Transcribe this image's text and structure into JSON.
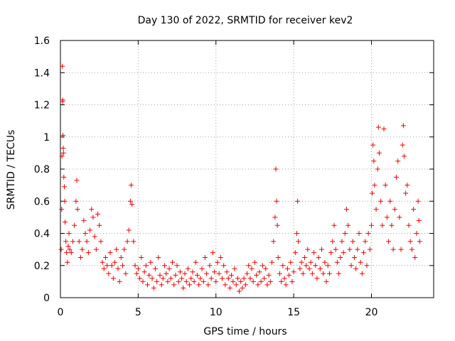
{
  "chart_data": {
    "type": "scatter",
    "title": "Day 130 of 2022, SRMTID for receiver kev2",
    "xlabel": "GPS time / hours",
    "ylabel": "SRMTID / TECUs",
    "xlim": [
      0,
      24
    ],
    "ylim": [
      0,
      1.6
    ],
    "xticks": [
      0,
      5,
      10,
      15,
      20
    ],
    "xtick_labels": [
      "0",
      "5",
      "10",
      "15",
      "20"
    ],
    "yticks": [
      0,
      0.2,
      0.4,
      0.6,
      0.8,
      1,
      1.2,
      1.4,
      1.6
    ],
    "ytick_labels": [
      "0",
      "0.2",
      "0.4",
      "0.6",
      "0.8",
      "1",
      "1.2",
      "1.4",
      "1.6"
    ],
    "grid": true,
    "marker": "+",
    "marker_color": "#ee0000",
    "series": [
      {
        "name": "kev2",
        "points": [
          [
            0.05,
            0.3
          ],
          [
            0.08,
            0.55
          ],
          [
            0.1,
            0.88
          ],
          [
            0.12,
            1.44
          ],
          [
            0.14,
            1.22
          ],
          [
            0.15,
            1.23
          ],
          [
            0.16,
            1.01
          ],
          [
            0.18,
            0.93
          ],
          [
            0.2,
            0.9
          ],
          [
            0.22,
            0.75
          ],
          [
            0.25,
            0.69
          ],
          [
            0.28,
            0.6
          ],
          [
            0.3,
            0.47
          ],
          [
            0.35,
            0.35
          ],
          [
            0.4,
            0.28
          ],
          [
            0.45,
            0.22
          ],
          [
            0.5,
            0.32
          ],
          [
            0.55,
            0.4
          ],
          [
            0.6,
            0.3
          ],
          [
            0.7,
            0.28
          ],
          [
            0.8,
            0.35
          ],
          [
            0.9,
            0.45
          ],
          [
            1.0,
            0.6
          ],
          [
            1.05,
            0.73
          ],
          [
            1.1,
            0.55
          ],
          [
            1.2,
            0.35
          ],
          [
            1.3,
            0.25
          ],
          [
            1.4,
            0.3
          ],
          [
            1.5,
            0.48
          ],
          [
            1.6,
            0.4
          ],
          [
            1.7,
            0.35
          ],
          [
            1.8,
            0.28
          ],
          [
            1.9,
            0.42
          ],
          [
            2.0,
            0.55
          ],
          [
            2.1,
            0.5
          ],
          [
            2.2,
            0.38
          ],
          [
            2.3,
            0.3
          ],
          [
            2.4,
            0.52
          ],
          [
            2.5,
            0.45
          ],
          [
            2.6,
            0.35
          ],
          [
            2.7,
            0.22
          ],
          [
            2.8,
            0.18
          ],
          [
            2.9,
            0.25
          ],
          [
            3.0,
            0.2
          ],
          [
            3.1,
            0.15
          ],
          [
            3.2,
            0.28
          ],
          [
            3.3,
            0.2
          ],
          [
            3.4,
            0.12
          ],
          [
            3.5,
            0.22
          ],
          [
            3.6,
            0.3
          ],
          [
            3.7,
            0.18
          ],
          [
            3.8,
            0.1
          ],
          [
            3.9,
            0.25
          ],
          [
            4.0,
            0.2
          ],
          [
            4.1,
            0.3
          ],
          [
            4.2,
            0.15
          ],
          [
            4.3,
            0.35
          ],
          [
            4.4,
            0.42
          ],
          [
            4.5,
            0.6
          ],
          [
            4.55,
            0.7
          ],
          [
            4.6,
            0.58
          ],
          [
            4.7,
            0.35
          ],
          [
            4.8,
            0.2
          ],
          [
            4.9,
            0.15
          ],
          [
            5.0,
            0.18
          ],
          [
            5.1,
            0.12
          ],
          [
            5.2,
            0.25
          ],
          [
            5.3,
            0.1
          ],
          [
            5.4,
            0.16
          ],
          [
            5.5,
            0.2
          ],
          [
            5.6,
            0.08
          ],
          [
            5.7,
            0.14
          ],
          [
            5.8,
            0.22
          ],
          [
            5.9,
            0.12
          ],
          [
            6.0,
            0.06
          ],
          [
            6.1,
            0.18
          ],
          [
            6.2,
            0.1
          ],
          [
            6.3,
            0.25
          ],
          [
            6.4,
            0.14
          ],
          [
            6.5,
            0.08
          ],
          [
            6.6,
            0.12
          ],
          [
            6.7,
            0.2
          ],
          [
            6.8,
            0.15
          ],
          [
            6.9,
            0.1
          ],
          [
            7.0,
            0.18
          ],
          [
            7.1,
            0.12
          ],
          [
            7.2,
            0.22
          ],
          [
            7.3,
            0.08
          ],
          [
            7.4,
            0.14
          ],
          [
            7.5,
            0.2
          ],
          [
            7.6,
            0.1
          ],
          [
            7.7,
            0.16
          ],
          [
            7.8,
            0.12
          ],
          [
            7.9,
            0.06
          ],
          [
            8.0,
            0.15
          ],
          [
            8.1,
            0.1
          ],
          [
            8.2,
            0.18
          ],
          [
            8.3,
            0.08
          ],
          [
            8.4,
            0.12
          ],
          [
            8.5,
            0.16
          ],
          [
            8.6,
            0.1
          ],
          [
            8.7,
            0.22
          ],
          [
            8.8,
            0.14
          ],
          [
            8.9,
            0.08
          ],
          [
            9.0,
            0.12
          ],
          [
            9.1,
            0.18
          ],
          [
            9.2,
            0.1
          ],
          [
            9.3,
            0.25
          ],
          [
            9.4,
            0.15
          ],
          [
            9.5,
            0.08
          ],
          [
            9.6,
            0.2
          ],
          [
            9.7,
            0.12
          ],
          [
            9.8,
            0.28
          ],
          [
            9.9,
            0.16
          ],
          [
            10.0,
            0.1
          ],
          [
            10.1,
            0.22
          ],
          [
            10.2,
            0.15
          ],
          [
            10.3,
            0.25
          ],
          [
            10.4,
            0.12
          ],
          [
            10.5,
            0.2
          ],
          [
            10.6,
            0.08
          ],
          [
            10.7,
            0.16
          ],
          [
            10.8,
            0.12
          ],
          [
            10.9,
            0.06
          ],
          [
            11.0,
            0.14
          ],
          [
            11.1,
            0.1
          ],
          [
            11.2,
            0.18
          ],
          [
            11.3,
            0.08
          ],
          [
            11.4,
            0.12
          ],
          [
            11.5,
            0.04
          ],
          [
            11.6,
            0.1
          ],
          [
            11.7,
            0.06
          ],
          [
            11.8,
            0.12
          ],
          [
            11.9,
            0.08
          ],
          [
            12.0,
            0.15
          ],
          [
            12.1,
            0.2
          ],
          [
            12.2,
            0.12
          ],
          [
            12.3,
            0.18
          ],
          [
            12.4,
            0.1
          ],
          [
            12.5,
            0.22
          ],
          [
            12.6,
            0.14
          ],
          [
            12.7,
            0.08
          ],
          [
            12.8,
            0.16
          ],
          [
            12.9,
            0.1
          ],
          [
            13.0,
            0.2
          ],
          [
            13.1,
            0.12
          ],
          [
            13.2,
            0.18
          ],
          [
            13.3,
            0.08
          ],
          [
            13.4,
            0.14
          ],
          [
            13.5,
            0.1
          ],
          [
            13.6,
            0.22
          ],
          [
            13.7,
            0.35
          ],
          [
            13.8,
            0.5
          ],
          [
            13.85,
            0.8
          ],
          [
            13.9,
            0.6
          ],
          [
            13.95,
            0.45
          ],
          [
            14.0,
            0.25
          ],
          [
            14.1,
            0.15
          ],
          [
            14.2,
            0.1
          ],
          [
            14.3,
            0.2
          ],
          [
            14.4,
            0.12
          ],
          [
            14.5,
            0.08
          ],
          [
            14.6,
            0.18
          ],
          [
            14.7,
            0.14
          ],
          [
            14.8,
            0.22
          ],
          [
            14.9,
            0.1
          ],
          [
            15.0,
            0.16
          ],
          [
            15.1,
            0.28
          ],
          [
            15.2,
            0.4
          ],
          [
            15.25,
            0.6
          ],
          [
            15.3,
            0.35
          ],
          [
            15.4,
            0.18
          ],
          [
            15.5,
            0.22
          ],
          [
            15.6,
            0.15
          ],
          [
            15.7,
            0.25
          ],
          [
            15.8,
            0.2
          ],
          [
            15.9,
            0.3
          ],
          [
            16.0,
            0.18
          ],
          [
            16.1,
            0.22
          ],
          [
            16.2,
            0.15
          ],
          [
            16.3,
            0.28
          ],
          [
            16.4,
            0.2
          ],
          [
            16.5,
            0.12
          ],
          [
            16.6,
            0.25
          ],
          [
            16.7,
            0.18
          ],
          [
            16.8,
            0.3
          ],
          [
            16.9,
            0.15
          ],
          [
            17.0,
            0.22
          ],
          [
            17.1,
            0.1
          ],
          [
            17.2,
            0.2
          ],
          [
            17.3,
            0.15
          ],
          [
            17.4,
            0.28
          ],
          [
            17.5,
            0.35
          ],
          [
            17.6,
            0.45
          ],
          [
            17.7,
            0.3
          ],
          [
            17.8,
            0.22
          ],
          [
            17.9,
            0.15
          ],
          [
            18.0,
            0.25
          ],
          [
            18.1,
            0.35
          ],
          [
            18.2,
            0.28
          ],
          [
            18.3,
            0.4
          ],
          [
            18.4,
            0.55
          ],
          [
            18.5,
            0.45
          ],
          [
            18.6,
            0.3
          ],
          [
            18.7,
            0.2
          ],
          [
            18.8,
            0.35
          ],
          [
            18.9,
            0.25
          ],
          [
            19.0,
            0.18
          ],
          [
            19.1,
            0.3
          ],
          [
            19.2,
            0.4
          ],
          [
            19.3,
            0.22
          ],
          [
            19.4,
            0.15
          ],
          [
            19.5,
            0.28
          ],
          [
            19.6,
            0.35
          ],
          [
            19.7,
            0.2
          ],
          [
            19.8,
            0.4
          ],
          [
            19.9,
            0.3
          ],
          [
            20.0,
            0.45
          ],
          [
            20.05,
            0.65
          ],
          [
            20.1,
            0.95
          ],
          [
            20.15,
            0.85
          ],
          [
            20.2,
            0.7
          ],
          [
            20.3,
            0.55
          ],
          [
            20.4,
            0.8
          ],
          [
            20.45,
            1.06
          ],
          [
            20.5,
            0.9
          ],
          [
            20.6,
            0.6
          ],
          [
            20.7,
            0.45
          ],
          [
            20.8,
            1.05
          ],
          [
            20.9,
            0.7
          ],
          [
            21.0,
            0.5
          ],
          [
            21.1,
            0.35
          ],
          [
            21.2,
            0.6
          ],
          [
            21.3,
            0.45
          ],
          [
            21.4,
            0.3
          ],
          [
            21.5,
            0.55
          ],
          [
            21.6,
            0.75
          ],
          [
            21.7,
            0.85
          ],
          [
            21.8,
            0.5
          ],
          [
            21.9,
            0.3
          ],
          [
            22.0,
            0.95
          ],
          [
            22.05,
            1.07
          ],
          [
            22.1,
            0.88
          ],
          [
            22.2,
            0.65
          ],
          [
            22.3,
            0.7
          ],
          [
            22.4,
            0.45
          ],
          [
            22.5,
            0.35
          ],
          [
            22.6,
            0.3
          ],
          [
            22.7,
            0.55
          ],
          [
            22.8,
            0.25
          ],
          [
            22.9,
            0.4
          ],
          [
            23.0,
            0.6
          ],
          [
            23.05,
            0.48
          ],
          [
            23.1,
            0.35
          ]
        ]
      }
    ]
  }
}
